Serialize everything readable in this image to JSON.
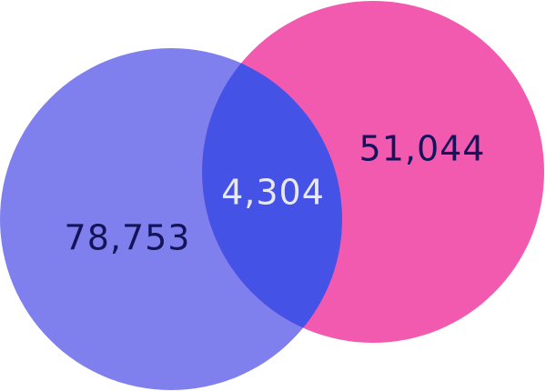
{
  "venn": {
    "left_set": {
      "value_label": "78,753",
      "fill_color": "#7F7FEE",
      "text_color": "#14145A"
    },
    "right_set": {
      "value_label": "51,044",
      "fill_color": "#F25AB0",
      "text_color": "#14145A"
    },
    "intersection": {
      "value_label": "4,304",
      "fill_color": "#4452E6",
      "text_color": "#E8E8F2"
    }
  }
}
